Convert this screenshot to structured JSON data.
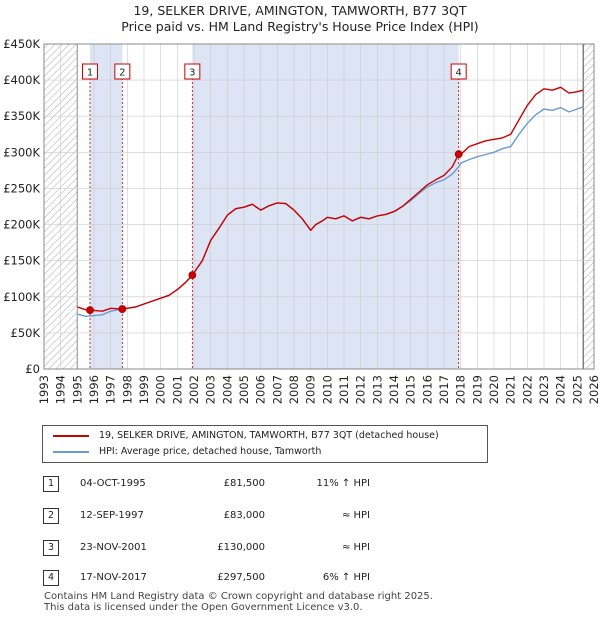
{
  "title_line1": "19, SELKER DRIVE, AMINGTON, TAMWORTH, B77 3QT",
  "title_line2": "Price paid vs. HM Land Registry's House Price Index (HPI)",
  "colors": {
    "property": "#cc0000",
    "hpi": "#6d9bd1",
    "shade": "#dde4f4",
    "hatch": "#999999"
  },
  "chart_data": {
    "type": "line",
    "xlim": [
      1993,
      2026
    ],
    "ylim": [
      0,
      450000
    ],
    "x_ticks": [
      "1993",
      "1994",
      "1995",
      "1996",
      "1997",
      "1998",
      "1999",
      "2000",
      "2001",
      "2002",
      "2003",
      "2004",
      "2005",
      "2006",
      "2007",
      "2008",
      "2009",
      "2010",
      "2011",
      "2012",
      "2013",
      "2014",
      "2015",
      "2016",
      "2017",
      "2018",
      "2019",
      "2020",
      "2021",
      "2022",
      "2023",
      "2024",
      "2025",
      "2026"
    ],
    "y_ticks": [
      {
        "value": 0,
        "label": "£0"
      },
      {
        "value": 50000,
        "label": "£50K"
      },
      {
        "value": 100000,
        "label": "£100K"
      },
      {
        "value": 150000,
        "label": "£150K"
      },
      {
        "value": 200000,
        "label": "£200K"
      },
      {
        "value": 250000,
        "label": "£250K"
      },
      {
        "value": 300000,
        "label": "£300K"
      },
      {
        "value": 350000,
        "label": "£350K"
      },
      {
        "value": 400000,
        "label": "£400K"
      },
      {
        "value": 450000,
        "label": "£450K"
      }
    ],
    "data_range": [
      1995.0,
      2025.35
    ],
    "series": [
      {
        "name": "19, SELKER DRIVE, AMINGTON, TAMWORTH, B77 3QT (detached house)",
        "x": [
          1995.0,
          1995.5,
          1995.76,
          1996.5,
          1997.0,
          1997.7,
          1998.5,
          1999.0,
          1999.5,
          2000.0,
          2000.5,
          2001.0,
          2001.5,
          2001.9,
          2002.5,
          2003.0,
          2003.5,
          2004.0,
          2004.5,
          2005.0,
          2005.5,
          2006.0,
          2006.5,
          2007.0,
          2007.5,
          2008.0,
          2008.5,
          2009.0,
          2009.3,
          2009.7,
          2010.0,
          2010.5,
          2011.0,
          2011.5,
          2012.0,
          2012.5,
          2013.0,
          2013.5,
          2014.0,
          2014.5,
          2015.0,
          2015.5,
          2016.0,
          2016.5,
          2017.0,
          2017.5,
          2017.88,
          2018.0,
          2018.5,
          2019.0,
          2019.5,
          2020.0,
          2020.5,
          2021.0,
          2021.5,
          2022.0,
          2022.5,
          2023.0,
          2023.5,
          2024.0,
          2024.5,
          2025.0,
          2025.35
        ],
        "y": [
          86000,
          82000,
          81500,
          80000,
          84000,
          83000,
          86000,
          90000,
          94000,
          98000,
          102000,
          110000,
          120000,
          130000,
          150000,
          178000,
          195000,
          213000,
          222000,
          224000,
          228000,
          220000,
          226000,
          230000,
          229000,
          220000,
          208000,
          192000,
          200000,
          205000,
          210000,
          208000,
          212000,
          205000,
          210000,
          208000,
          212000,
          214000,
          218000,
          225000,
          235000,
          245000,
          255000,
          262000,
          268000,
          280000,
          297500,
          297000,
          308000,
          312000,
          316000,
          318000,
          320000,
          325000,
          345000,
          365000,
          380000,
          388000,
          386000,
          390000,
          382000,
          384000,
          386000
        ]
      },
      {
        "name": "HPI: Average price, detached house, Tamworth",
        "x": [
          1995.0,
          1995.5,
          1995.76,
          1996.5,
          1997.0,
          1997.7,
          1998.5,
          1999.0,
          1999.5,
          2000.0,
          2000.5,
          2001.0,
          2001.5,
          2001.9,
          2002.5,
          2003.0,
          2003.5,
          2004.0,
          2004.5,
          2005.0,
          2005.5,
          2006.0,
          2006.5,
          2007.0,
          2007.5,
          2008.0,
          2008.5,
          2009.0,
          2009.3,
          2009.7,
          2010.0,
          2010.5,
          2011.0,
          2011.5,
          2012.0,
          2012.5,
          2013.0,
          2013.5,
          2014.0,
          2014.5,
          2015.0,
          2015.5,
          2016.0,
          2016.5,
          2017.0,
          2017.5,
          2017.88,
          2018.0,
          2018.5,
          2019.0,
          2019.5,
          2020.0,
          2020.5,
          2021.0,
          2021.5,
          2022.0,
          2022.5,
          2023.0,
          2023.5,
          2024.0,
          2024.5,
          2025.0,
          2025.35
        ],
        "y": [
          76000,
          73000,
          73500,
          75000,
          80000,
          83000,
          86000,
          90000,
          94000,
          98000,
          102000,
          110000,
          120000,
          130000,
          150000,
          178000,
          195000,
          213000,
          222000,
          224000,
          228000,
          220000,
          226000,
          230000,
          229000,
          220000,
          208000,
          192000,
          200000,
          205000,
          210000,
          208000,
          212000,
          205000,
          210000,
          208000,
          212000,
          214000,
          218000,
          225000,
          233000,
          243000,
          252000,
          258000,
          262000,
          270000,
          280000,
          285000,
          290000,
          294000,
          297000,
          300000,
          305000,
          308000,
          325000,
          340000,
          352000,
          360000,
          358000,
          362000,
          356000,
          360000,
          363000
        ]
      }
    ],
    "sale_markers": [
      {
        "label": "1",
        "x": 1995.76,
        "y": 81500
      },
      {
        "label": "2",
        "x": 1997.7,
        "y": 83000
      },
      {
        "label": "3",
        "x": 2001.9,
        "y": 130000
      },
      {
        "label": "4",
        "x": 2017.88,
        "y": 297500
      }
    ]
  },
  "legend": {
    "property_label": "19, SELKER DRIVE, AMINGTON, TAMWORTH, B77 3QT (detached house)",
    "hpi_label": "HPI: Average price, detached house, Tamworth"
  },
  "sales": [
    {
      "num": "1",
      "date": "04-OCT-1995",
      "price": "£81,500",
      "hpi": "11% ↑ HPI"
    },
    {
      "num": "2",
      "date": "12-SEP-1997",
      "price": "£83,000",
      "hpi": "≈ HPI"
    },
    {
      "num": "3",
      "date": "23-NOV-2001",
      "price": "£130,000",
      "hpi": "≈ HPI"
    },
    {
      "num": "4",
      "date": "17-NOV-2017",
      "price": "£297,500",
      "hpi": "6% ↑ HPI"
    }
  ],
  "footer_line1": "Contains HM Land Registry data © Crown copyright and database right 2025.",
  "footer_line2": "This data is licensed under the Open Government Licence v3.0."
}
